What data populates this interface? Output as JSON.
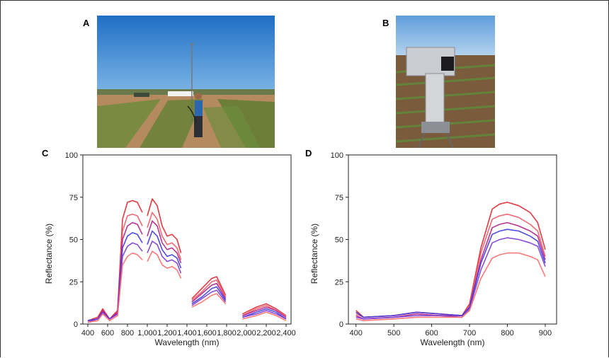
{
  "figure": {
    "panels": {
      "a": {
        "letter": "A"
      },
      "b": {
        "letter": "B"
      },
      "c": {
        "letter": "C"
      },
      "d": {
        "letter": "D"
      }
    }
  },
  "chart_data": [
    {
      "type": "line",
      "panel": "C",
      "xlabel": "Wavelength (nm)",
      "ylabel": "Reflectance (%)",
      "xlim": [
        350,
        2450
      ],
      "ylim": [
        0,
        100
      ],
      "xticks": [
        400,
        600,
        800,
        1000,
        1200,
        1400,
        1600,
        1800,
        2000,
        2200,
        2400
      ],
      "xtick_labels": [
        "400",
        "600",
        "800",
        "1,000",
        "1,200",
        "1,400",
        "1,600",
        "1,800",
        "2,000",
        "2,200",
        "2,400"
      ],
      "yticks": [
        0,
        25,
        50,
        75,
        100
      ],
      "ytick_labels": [
        "0",
        "25",
        "50",
        "75",
        "100"
      ],
      "segments": [
        [
          400,
          950
        ],
        [
          1000,
          1340
        ],
        [
          1450,
          1790
        ],
        [
          1960,
          2400
        ]
      ],
      "series_colors": [
        "#e0242c",
        "#f05a64",
        "#b01e8a",
        "#3a3ae0",
        "#7a3ad0",
        "#ff6a6a"
      ],
      "series": [
        {
          "x": [
            400,
            500,
            550,
            620,
            700,
            750,
            800,
            850,
            900,
            950,
            1000,
            1050,
            1100,
            1150,
            1200,
            1250,
            1300,
            1340,
            1450,
            1550,
            1650,
            1700,
            1790,
            1960,
            2100,
            2200,
            2300,
            2400
          ],
          "values": [
            2,
            4,
            9,
            3,
            8,
            62,
            72,
            73,
            72,
            66,
            64,
            74,
            70,
            58,
            52,
            53,
            50,
            42,
            15,
            21,
            27,
            28,
            17,
            6,
            10,
            12,
            9,
            5
          ]
        },
        {
          "x": [
            400,
            500,
            550,
            620,
            700,
            750,
            800,
            850,
            900,
            950,
            1000,
            1050,
            1100,
            1150,
            1200,
            1250,
            1300,
            1340,
            1450,
            1550,
            1650,
            1700,
            1790,
            1960,
            2100,
            2200,
            2300,
            2400
          ],
          "values": [
            2,
            3,
            8,
            3,
            7,
            55,
            64,
            65,
            64,
            58,
            57,
            66,
            62,
            52,
            47,
            48,
            45,
            38,
            14,
            19,
            25,
            26,
            16,
            5,
            9,
            11,
            8,
            4
          ]
        },
        {
          "x": [
            400,
            500,
            550,
            620,
            700,
            750,
            800,
            850,
            900,
            950,
            1000,
            1050,
            1100,
            1150,
            1200,
            1250,
            1300,
            1340,
            1450,
            1550,
            1650,
            1700,
            1790,
            1960,
            2100,
            2200,
            2300,
            2400
          ],
          "values": [
            2,
            3,
            8,
            3,
            7,
            50,
            58,
            60,
            59,
            53,
            52,
            61,
            58,
            48,
            44,
            45,
            42,
            36,
            13,
            18,
            23,
            24,
            15,
            5,
            8,
            10,
            8,
            4
          ]
        },
        {
          "x": [
            400,
            500,
            550,
            620,
            700,
            750,
            800,
            850,
            900,
            950,
            1000,
            1050,
            1100,
            1150,
            1200,
            1250,
            1300,
            1340,
            1450,
            1550,
            1650,
            1700,
            1790,
            1960,
            2100,
            2200,
            2300,
            2400
          ],
          "values": [
            2,
            3,
            7,
            3,
            6,
            45,
            52,
            54,
            53,
            48,
            47,
            55,
            52,
            44,
            40,
            41,
            39,
            33,
            12,
            16,
            21,
            22,
            14,
            4,
            7,
            9,
            7,
            3
          ]
        },
        {
          "x": [
            400,
            500,
            550,
            620,
            700,
            750,
            800,
            850,
            900,
            950,
            1000,
            1050,
            1100,
            1150,
            1200,
            1250,
            1300,
            1340,
            1450,
            1550,
            1650,
            1700,
            1790,
            1960,
            2100,
            2200,
            2300,
            2400
          ],
          "values": [
            1,
            3,
            7,
            3,
            6,
            40,
            46,
            48,
            47,
            43,
            42,
            49,
            47,
            40,
            37,
            38,
            36,
            30,
            11,
            15,
            19,
            20,
            13,
            4,
            6,
            8,
            6,
            3
          ]
        },
        {
          "x": [
            400,
            500,
            550,
            620,
            700,
            750,
            800,
            850,
            900,
            950,
            1000,
            1050,
            1100,
            1150,
            1200,
            1250,
            1300,
            1340,
            1450,
            1550,
            1650,
            1700,
            1790,
            1960,
            2100,
            2200,
            2300,
            2400
          ],
          "values": [
            1,
            2,
            6,
            2,
            5,
            35,
            40,
            42,
            41,
            38,
            37,
            43,
            41,
            35,
            33,
            34,
            32,
            27,
            10,
            13,
            17,
            18,
            12,
            3,
            5,
            7,
            5,
            2
          ]
        }
      ]
    },
    {
      "type": "line",
      "panel": "D",
      "xlabel": "Wavelength (nm)",
      "ylabel": "Reflectance (%)",
      "xlim": [
        380,
        930
      ],
      "ylim": [
        0,
        100
      ],
      "xticks": [
        400,
        500,
        600,
        700,
        800,
        900
      ],
      "xtick_labels": [
        "400",
        "500",
        "600",
        "700",
        "800",
        "900"
      ],
      "yticks": [
        0,
        25,
        50,
        75,
        100
      ],
      "ytick_labels": [
        "0",
        "25",
        "50",
        "75",
        "100"
      ],
      "series_colors": [
        "#e0242c",
        "#f05a64",
        "#b01e8a",
        "#3a3ae0",
        "#7a3ad0",
        "#ff6a6a"
      ],
      "series": [
        {
          "x": [
            400,
            420,
            500,
            560,
            620,
            680,
            700,
            730,
            760,
            780,
            800,
            830,
            860,
            880,
            900
          ],
          "values": [
            8,
            4,
            5,
            7,
            6,
            5,
            12,
            45,
            68,
            71,
            72,
            70,
            66,
            60,
            44
          ]
        },
        {
          "x": [
            400,
            420,
            500,
            560,
            620,
            680,
            700,
            730,
            760,
            780,
            800,
            830,
            860,
            880,
            900
          ],
          "values": [
            6,
            4,
            5,
            7,
            6,
            5,
            11,
            42,
            62,
            64,
            65,
            63,
            59,
            55,
            40
          ]
        },
        {
          "x": [
            400,
            420,
            500,
            560,
            620,
            680,
            700,
            730,
            760,
            780,
            800,
            830,
            860,
            880,
            900
          ],
          "values": [
            5,
            3,
            4,
            6,
            5,
            5,
            10,
            38,
            57,
            59,
            60,
            58,
            55,
            52,
            38
          ]
        },
        {
          "x": [
            400,
            420,
            500,
            560,
            620,
            680,
            700,
            730,
            760,
            780,
            800,
            830,
            860,
            880,
            900
          ],
          "values": [
            7,
            4,
            5,
            7,
            6,
            5,
            10,
            36,
            53,
            55,
            56,
            55,
            52,
            49,
            36
          ]
        },
        {
          "x": [
            400,
            420,
            500,
            560,
            620,
            680,
            700,
            730,
            760,
            780,
            800,
            830,
            860,
            880,
            900
          ],
          "values": [
            4,
            3,
            4,
            5,
            5,
            4,
            9,
            32,
            48,
            50,
            51,
            50,
            48,
            46,
            34
          ]
        },
        {
          "x": [
            400,
            420,
            500,
            560,
            620,
            680,
            700,
            730,
            760,
            780,
            800,
            830,
            860,
            880,
            900
          ],
          "values": [
            3,
            2,
            3,
            4,
            4,
            4,
            8,
            27,
            39,
            41,
            42,
            42,
            40,
            38,
            28
          ]
        }
      ]
    }
  ]
}
